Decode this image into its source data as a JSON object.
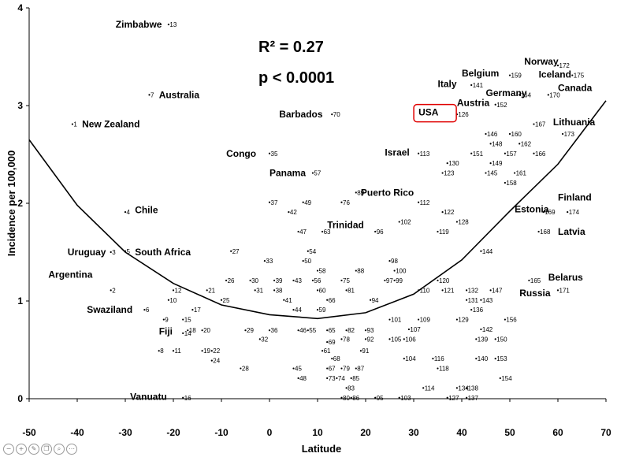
{
  "chart_data": {
    "type": "scatter",
    "xlabel": "Latitude",
    "ylabel": "Incidence per 100,000",
    "xlim": [
      -50,
      70
    ],
    "ylim": [
      0,
      4
    ],
    "xticks": [
      -50,
      -40,
      -30,
      -20,
      -10,
      0,
      10,
      20,
      30,
      40,
      50,
      60,
      70
    ],
    "yticks": [
      0,
      1,
      2,
      3,
      4
    ],
    "grid": false,
    "annotation_r2": "R² = 0.27",
    "annotation_p": "p < 0.0001",
    "highlight": {
      "label": "USA",
      "color": "#e00000"
    },
    "fit_curve": {
      "type": "quadratic",
      "points": [
        [
          -50,
          2.65
        ],
        [
          -40,
          1.98
        ],
        [
          -30,
          1.5
        ],
        [
          -20,
          1.18
        ],
        [
          -10,
          0.96
        ],
        [
          0,
          0.86
        ],
        [
          10,
          0.82
        ],
        [
          20,
          0.88
        ],
        [
          30,
          1.07
        ],
        [
          40,
          1.42
        ],
        [
          50,
          1.92
        ],
        [
          60,
          2.4
        ],
        [
          70,
          3.05
        ]
      ]
    },
    "points": [
      {
        "id": "1",
        "x": -41,
        "y": 2.81
      },
      {
        "id": "2",
        "x": -33,
        "y": 1.11
      },
      {
        "id": "3",
        "x": -33,
        "y": 1.5
      },
      {
        "id": "4",
        "x": -30,
        "y": 1.91
      },
      {
        "id": "5",
        "x": -30,
        "y": 1.51
      },
      {
        "id": "6",
        "x": -26,
        "y": 0.91
      },
      {
        "id": "7",
        "x": -25,
        "y": 3.11
      },
      {
        "id": "8",
        "x": -23,
        "y": 0.49
      },
      {
        "id": "9",
        "x": -22,
        "y": 0.81
      },
      {
        "id": "10",
        "x": -21,
        "y": 1.01
      },
      {
        "id": "11",
        "x": -20,
        "y": 0.49
      },
      {
        "id": "12",
        "x": -20,
        "y": 1.11
      },
      {
        "id": "13",
        "x": -21,
        "y": 3.83
      },
      {
        "id": "14",
        "x": -18,
        "y": 0.67
      },
      {
        "id": "15",
        "x": -18,
        "y": 0.81
      },
      {
        "id": "16",
        "x": -18,
        "y": 0.01
      },
      {
        "id": "17",
        "x": -16,
        "y": 0.91
      },
      {
        "id": "18",
        "x": -17,
        "y": 0.7
      },
      {
        "id": "19",
        "x": -14,
        "y": 0.49
      },
      {
        "id": "20",
        "x": -14,
        "y": 0.7
      },
      {
        "id": "21",
        "x": -13,
        "y": 1.11
      },
      {
        "id": "22",
        "x": -12,
        "y": 0.49
      },
      {
        "id": "24",
        "x": -12,
        "y": 0.39
      },
      {
        "id": "25",
        "x": -10,
        "y": 1.01
      },
      {
        "id": "26",
        "x": -9,
        "y": 1.21
      },
      {
        "id": "27",
        "x": -8,
        "y": 1.51
      },
      {
        "id": "28",
        "x": -6,
        "y": 0.31
      },
      {
        "id": "29",
        "x": -5,
        "y": 0.7
      },
      {
        "id": "30",
        "x": -4,
        "y": 1.21
      },
      {
        "id": "31",
        "x": -3,
        "y": 1.11
      },
      {
        "id": "32",
        "x": -2,
        "y": 0.61
      },
      {
        "id": "33",
        "x": -1,
        "y": 1.41
      },
      {
        "id": "35",
        "x": 0,
        "y": 2.51
      },
      {
        "id": "36",
        "x": 0,
        "y": 0.7
      },
      {
        "id": "37",
        "x": 0,
        "y": 2.01
      },
      {
        "id": "38",
        "x": 1,
        "y": 1.11
      },
      {
        "id": "39",
        "x": 1,
        "y": 1.21
      },
      {
        "id": "41",
        "x": 3,
        "y": 1.01
      },
      {
        "id": "42",
        "x": 4,
        "y": 1.91
      },
      {
        "id": "43",
        "x": 5,
        "y": 1.21
      },
      {
        "id": "44",
        "x": 5,
        "y": 0.91
      },
      {
        "id": "45",
        "x": 5,
        "y": 0.31
      },
      {
        "id": "46",
        "x": 6,
        "y": 0.7
      },
      {
        "id": "47",
        "x": 6,
        "y": 1.71
      },
      {
        "id": "48",
        "x": 6,
        "y": 0.21
      },
      {
        "id": "49",
        "x": 7,
        "y": 2.01
      },
      {
        "id": "50",
        "x": 7,
        "y": 1.41
      },
      {
        "id": "54",
        "x": 8,
        "y": 1.51
      },
      {
        "id": "55",
        "x": 8,
        "y": 0.7
      },
      {
        "id": "56",
        "x": 9,
        "y": 1.21
      },
      {
        "id": "57",
        "x": 9,
        "y": 2.31
      },
      {
        "id": "58",
        "x": 10,
        "y": 1.31
      },
      {
        "id": "59",
        "x": 10,
        "y": 0.91
      },
      {
        "id": "60",
        "x": 10,
        "y": 1.11
      },
      {
        "id": "61",
        "x": 11,
        "y": 0.49
      },
      {
        "id": "63",
        "x": 11,
        "y": 1.71
      },
      {
        "id": "65",
        "x": 12,
        "y": 0.7
      },
      {
        "id": "66",
        "x": 12,
        "y": 1.01
      },
      {
        "id": "67",
        "x": 12,
        "y": 0.31
      },
      {
        "id": "68",
        "x": 13,
        "y": 0.41
      },
      {
        "id": "69",
        "x": 12,
        "y": 0.58
      },
      {
        "id": "70",
        "x": 13,
        "y": 2.91
      },
      {
        "id": "73",
        "x": 12,
        "y": 0.21
      },
      {
        "id": "74",
        "x": 14,
        "y": 0.21
      },
      {
        "id": "75",
        "x": 15,
        "y": 1.21
      },
      {
        "id": "76",
        "x": 15,
        "y": 2.01
      },
      {
        "id": "78",
        "x": 15,
        "y": 0.61
      },
      {
        "id": "79",
        "x": 15,
        "y": 0.31
      },
      {
        "id": "80",
        "x": 15,
        "y": 0.01
      },
      {
        "id": "81",
        "x": 16,
        "y": 1.11
      },
      {
        "id": "82",
        "x": 16,
        "y": 0.7
      },
      {
        "id": "83",
        "x": 16,
        "y": 0.11
      },
      {
        "id": "85",
        "x": 17,
        "y": 0.21
      },
      {
        "id": "86",
        "x": 17,
        "y": 0.01
      },
      {
        "id": "87",
        "x": 18,
        "y": 0.31
      },
      {
        "id": "88",
        "x": 18,
        "y": 1.31
      },
      {
        "id": "89",
        "x": 18,
        "y": 2.11
      },
      {
        "id": "91",
        "x": 19,
        "y": 0.49
      },
      {
        "id": "92",
        "x": 20,
        "y": 0.61
      },
      {
        "id": "93",
        "x": 20,
        "y": 0.7
      },
      {
        "id": "94",
        "x": 21,
        "y": 1.01
      },
      {
        "id": "95",
        "x": 22,
        "y": 0.01
      },
      {
        "id": "96",
        "x": 22,
        "y": 1.71
      },
      {
        "id": "97",
        "x": 24,
        "y": 1.21
      },
      {
        "id": "98",
        "x": 25,
        "y": 1.41
      },
      {
        "id": "99",
        "x": 26,
        "y": 1.21
      },
      {
        "id": "100",
        "x": 26,
        "y": 1.31
      },
      {
        "id": "101",
        "x": 25,
        "y": 0.81
      },
      {
        "id": "102",
        "x": 27,
        "y": 1.81
      },
      {
        "id": "103",
        "x": 27,
        "y": 0.01
      },
      {
        "id": "104",
        "x": 28,
        "y": 0.41
      },
      {
        "id": "105",
        "x": 25,
        "y": 0.61
      },
      {
        "id": "106",
        "x": 28,
        "y": 0.61
      },
      {
        "id": "107",
        "x": 29,
        "y": 0.71
      },
      {
        "id": "109",
        "x": 31,
        "y": 0.81
      },
      {
        "id": "110",
        "x": 31,
        "y": 1.11
      },
      {
        "id": "112",
        "x": 31,
        "y": 2.01
      },
      {
        "id": "113",
        "x": 31,
        "y": 2.51
      },
      {
        "id": "114",
        "x": 32,
        "y": 0.11
      },
      {
        "id": "116",
        "x": 34,
        "y": 0.41
      },
      {
        "id": "118",
        "x": 35,
        "y": 0.31
      },
      {
        "id": "119",
        "x": 35,
        "y": 1.71
      },
      {
        "id": "120",
        "x": 35,
        "y": 1.21
      },
      {
        "id": "121",
        "x": 36,
        "y": 1.11
      },
      {
        "id": "122",
        "x": 36,
        "y": 1.91
      },
      {
        "id": "123",
        "x": 36,
        "y": 2.31
      },
      {
        "id": "126",
        "x": 39,
        "y": 2.91
      },
      {
        "id": "127",
        "x": 37,
        "y": 0.01
      },
      {
        "id": "128",
        "x": 39,
        "y": 1.81
      },
      {
        "id": "129",
        "x": 39,
        "y": 0.81
      },
      {
        "id": "130",
        "x": 37,
        "y": 2.41
      },
      {
        "id": "131",
        "x": 41,
        "y": 1.01
      },
      {
        "id": "132",
        "x": 41,
        "y": 1.11
      },
      {
        "id": "134",
        "x": 39,
        "y": 0.11
      },
      {
        "id": "136",
        "x": 42,
        "y": 0.91
      },
      {
        "id": "137",
        "x": 41,
        "y": 0.01
      },
      {
        "id": "138",
        "x": 41,
        "y": 0.11
      },
      {
        "id": "139",
        "x": 43,
        "y": 0.61
      },
      {
        "id": "140",
        "x": 43,
        "y": 0.41
      },
      {
        "id": "141",
        "x": 42,
        "y": 3.21
      },
      {
        "id": "142",
        "x": 44,
        "y": 0.71
      },
      {
        "id": "143",
        "x": 44,
        "y": 1.01
      },
      {
        "id": "144",
        "x": 44,
        "y": 1.51
      },
      {
        "id": "145",
        "x": 45,
        "y": 2.31
      },
      {
        "id": "146",
        "x": 45,
        "y": 2.71
      },
      {
        "id": "147",
        "x": 46,
        "y": 1.11
      },
      {
        "id": "148",
        "x": 46,
        "y": 2.61
      },
      {
        "id": "149",
        "x": 46,
        "y": 2.41
      },
      {
        "id": "150",
        "x": 47,
        "y": 0.61
      },
      {
        "id": "151",
        "x": 42,
        "y": 2.51
      },
      {
        "id": "152",
        "x": 47,
        "y": 3.01
      },
      {
        "id": "153",
        "x": 47,
        "y": 0.41
      },
      {
        "id": "154",
        "x": 48,
        "y": 0.21
      },
      {
        "id": "156",
        "x": 49,
        "y": 0.81
      },
      {
        "id": "157",
        "x": 49,
        "y": 2.51
      },
      {
        "id": "158",
        "x": 49,
        "y": 2.21
      },
      {
        "id": "159",
        "x": 50,
        "y": 3.31
      },
      {
        "id": "160",
        "x": 50,
        "y": 2.71
      },
      {
        "id": "161",
        "x": 51,
        "y": 2.31
      },
      {
        "id": "162",
        "x": 52,
        "y": 2.61
      },
      {
        "id": "164",
        "x": 52,
        "y": 3.11
      },
      {
        "id": "165",
        "x": 54,
        "y": 1.21
      },
      {
        "id": "166",
        "x": 55,
        "y": 2.51
      },
      {
        "id": "167",
        "x": 55,
        "y": 2.81
      },
      {
        "id": "168",
        "x": 56,
        "y": 1.71
      },
      {
        "id": "169",
        "x": 57,
        "y": 1.91
      },
      {
        "id": "170",
        "x": 58,
        "y": 3.11
      },
      {
        "id": "171",
        "x": 60,
        "y": 1.11
      },
      {
        "id": "172",
        "x": 60,
        "y": 3.41
      },
      {
        "id": "173",
        "x": 61,
        "y": 2.71
      },
      {
        "id": "174",
        "x": 62,
        "y": 1.91
      },
      {
        "id": "175",
        "x": 63,
        "y": 3.31
      }
    ],
    "country_labels": [
      {
        "text": "Zimbabwe",
        "x": -32,
        "y": 3.83
      },
      {
        "text": "Australia",
        "x": -23,
        "y": 3.11
      },
      {
        "text": "New Zealand",
        "x": -39,
        "y": 2.81
      },
      {
        "text": "Barbados",
        "x": 2,
        "y": 2.91
      },
      {
        "text": "Congo",
        "x": -9,
        "y": 2.51
      },
      {
        "text": "Panama",
        "x": 0,
        "y": 2.31
      },
      {
        "text": "Chile",
        "x": -28,
        "y": 1.93
      },
      {
        "text": "Uruguay",
        "x": -42,
        "y": 1.5
      },
      {
        "text": "South Africa",
        "x": -28,
        "y": 1.5
      },
      {
        "text": "Argentina",
        "x": -46,
        "y": 1.27
      },
      {
        "text": "Swaziland",
        "x": -38,
        "y": 0.91
      },
      {
        "text": "Fiji",
        "x": -23,
        "y": 0.69
      },
      {
        "text": "Vanuatu",
        "x": -29,
        "y": 0.02
      },
      {
        "text": "Puerto Rico",
        "x": 19,
        "y": 2.11
      },
      {
        "text": "Trinidad",
        "x": 12,
        "y": 1.78
      },
      {
        "text": "Israel",
        "x": 24,
        "y": 2.52
      },
      {
        "text": "USA",
        "x": 31,
        "y": 2.93
      },
      {
        "text": "Italy",
        "x": 35,
        "y": 3.22
      },
      {
        "text": "Belgium",
        "x": 40,
        "y": 3.33
      },
      {
        "text": "Austria",
        "x": 39,
        "y": 3.03
      },
      {
        "text": "Germany",
        "x": 45,
        "y": 3.13
      },
      {
        "text": "Norway",
        "x": 53,
        "y": 3.45
      },
      {
        "text": "Iceland",
        "x": 56,
        "y": 3.32
      },
      {
        "text": "Canada",
        "x": 60,
        "y": 3.18
      },
      {
        "text": "Lithuania",
        "x": 59,
        "y": 2.83
      },
      {
        "text": "Finland",
        "x": 60,
        "y": 2.06
      },
      {
        "text": "Estonia",
        "x": 51,
        "y": 1.94
      },
      {
        "text": "Latvia",
        "x": 60,
        "y": 1.71
      },
      {
        "text": "Belarus",
        "x": 58,
        "y": 1.24
      },
      {
        "text": "Russia",
        "x": 52,
        "y": 1.08
      }
    ]
  },
  "toolbar": [
    {
      "name": "zoom-out-icon",
      "glyph": "−"
    },
    {
      "name": "zoom-in-icon",
      "glyph": "+"
    },
    {
      "name": "edit-icon",
      "glyph": "✎"
    },
    {
      "name": "copy-icon",
      "glyph": "❐"
    },
    {
      "name": "search-icon",
      "glyph": "⌕"
    },
    {
      "name": "more-icon",
      "glyph": "⋯"
    }
  ]
}
